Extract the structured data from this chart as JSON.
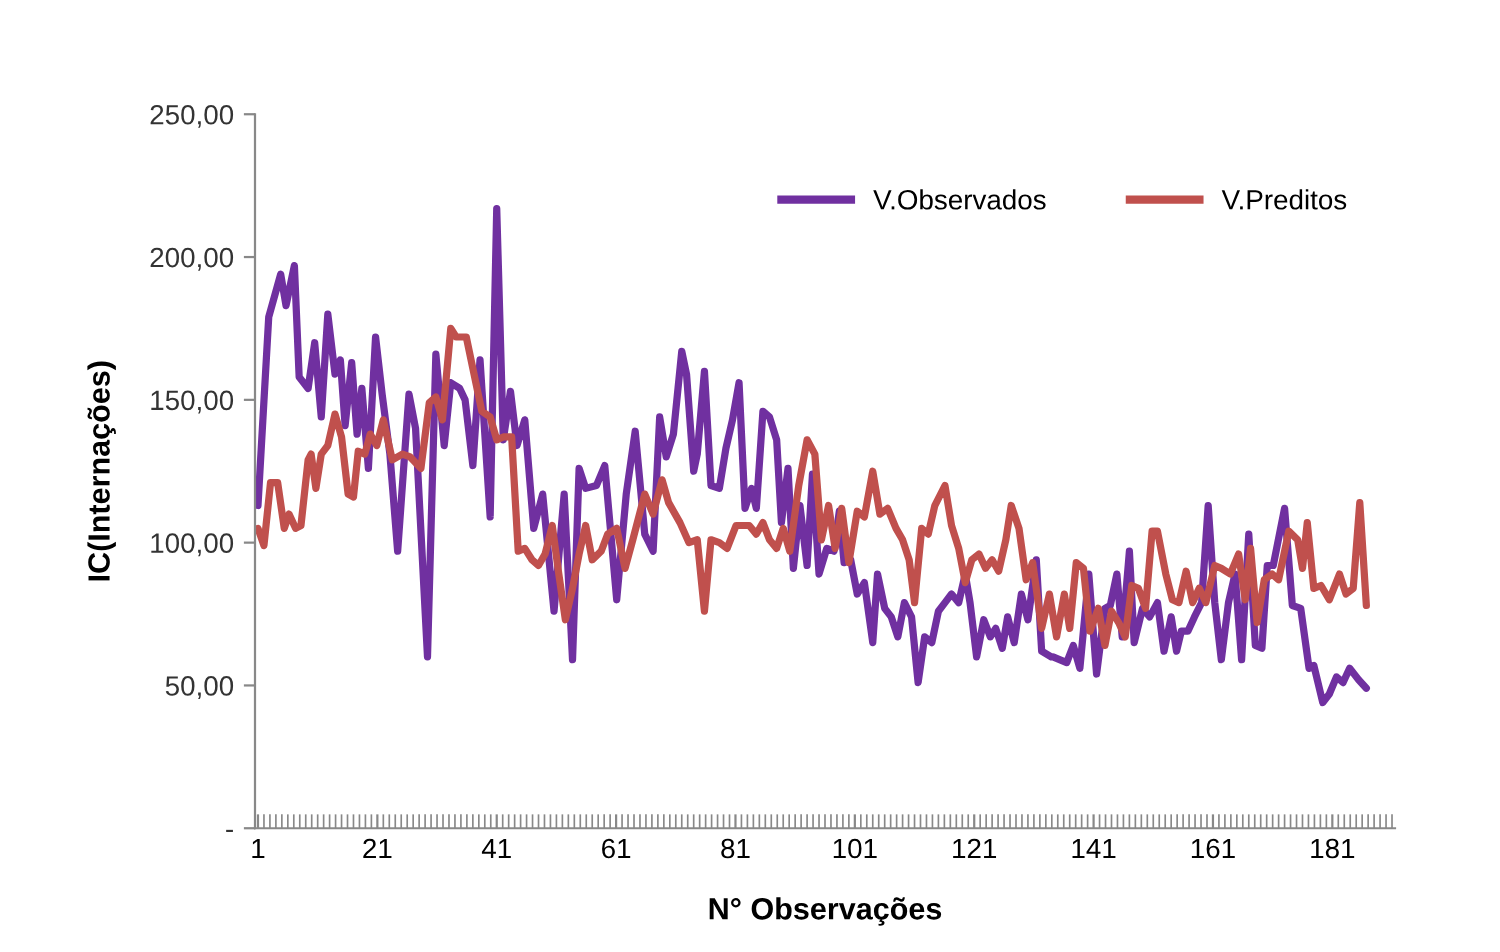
{
  "chart_data": {
    "type": "line",
    "xlabel": "N° Observações",
    "ylabel": "IC(Internações)",
    "xlim": [
      0.5,
      191.5
    ],
    "xticks": [
      1,
      21,
      41,
      61,
      81,
      101,
      121,
      141,
      161,
      181
    ],
    "ylim": [
      0,
      250
    ],
    "yticks": [
      {
        "value": 0,
        "label": "-"
      },
      {
        "value": 50,
        "label": "50,00"
      },
      {
        "value": 100,
        "label": "100,00"
      },
      {
        "value": 150,
        "label": "150,00"
      },
      {
        "value": 200,
        "label": "200,00"
      },
      {
        "value": 250,
        "label": "250,00"
      }
    ],
    "grid": false,
    "legend": "top right",
    "marker": "none",
    "line_style": "solid",
    "series": [
      {
        "name": "V.Observados",
        "color": "#7030a0",
        "x": [
          1,
          2.8,
          4.8,
          5.7,
          7.1,
          7.9,
          9.4,
          10.5,
          11.6,
          12.7,
          13.9,
          14.8,
          15.6,
          16.7,
          17.6,
          18.4,
          19.5,
          20.7,
          21.8,
          23.1,
          24.4,
          26.3,
          27.4,
          29.4,
          30.8,
          32.2,
          33.3,
          34.8,
          35.7,
          37.0,
          38.2,
          39.9,
          41,
          42.1,
          43.3,
          44.4,
          45.7,
          47.2,
          48.7,
          50.6,
          52.3,
          53.7,
          54.8,
          55.9,
          57.7,
          59.1,
          61.1,
          62.7,
          64.2,
          65.8,
          67.2,
          68.3,
          69.4,
          70.6,
          72,
          72.8,
          74,
          74.6,
          75.8,
          76.9,
          78.3,
          79.4,
          80.5,
          81.6,
          82.6,
          83.7,
          84.5,
          85.6,
          86.7,
          87.9,
          88.7,
          89.8,
          90.7,
          91.8,
          93,
          93.9,
          95,
          96.3,
          97.5,
          98.4,
          99.2,
          100.3,
          101.4,
          102.6,
          104,
          104.8,
          106,
          107.1,
          108.2,
          109.3,
          110.5,
          111.6,
          112.7,
          113.9,
          115,
          116.1,
          117.2,
          118.4,
          119.5,
          120.3,
          121.4,
          122.6,
          123.7,
          124.6,
          125.7,
          126.6,
          127.7,
          128.9,
          130,
          131.4,
          132.3,
          133.9,
          134.2,
          136.5,
          137.6,
          138.7,
          140.2,
          141.5,
          142.9,
          143.8,
          144.9,
          145.8,
          147,
          147.8,
          149.2,
          150.4,
          151.7,
          152.8,
          154,
          154.9,
          155.7,
          156.8,
          157.9,
          159.1,
          160.2,
          161.3,
          162.4,
          163.6,
          164.7,
          165.8,
          167,
          168.1,
          169.2,
          170.1,
          171.1,
          173,
          174.3,
          175.7,
          177.1,
          177.9,
          179.4,
          180.5,
          181.7,
          182.8,
          183.9,
          185.4,
          186.7
        ],
        "values": [
          113,
          179,
          194,
          183,
          197,
          158,
          154,
          170,
          144,
          180,
          159,
          164,
          141,
          163,
          138,
          154,
          126,
          172,
          152,
          131,
          97,
          152,
          140,
          60,
          166,
          134,
          156,
          154,
          150,
          127,
          164,
          109,
          217,
          136,
          153,
          134,
          143,
          105,
          117,
          76,
          117,
          59,
          126,
          119,
          120,
          127,
          80,
          117,
          139,
          103,
          97,
          144,
          130,
          138,
          167,
          159,
          125,
          131,
          160,
          120,
          119,
          133,
          143,
          156,
          112,
          119,
          112,
          146,
          144,
          136,
          107,
          126,
          91,
          113,
          92,
          124,
          89,
          98,
          97,
          111,
          93,
          94,
          82,
          86,
          65,
          89,
          77,
          74,
          67,
          79,
          74,
          51,
          67,
          65,
          76,
          79,
          82,
          79,
          89,
          79,
          60,
          73,
          67,
          70,
          63,
          74,
          65,
          82,
          73,
          94,
          62,
          60,
          60,
          58,
          64,
          56,
          89,
          54,
          77,
          78,
          89,
          67,
          97,
          65,
          77,
          74,
          79,
          62,
          74,
          62,
          69,
          69,
          74,
          79,
          113,
          79,
          59,
          79,
          89,
          59,
          103,
          64,
          63,
          92,
          92,
          112,
          78,
          77,
          56,
          57,
          44,
          47,
          53,
          51,
          56,
          52,
          49
        ]
      },
      {
        "name": "V.Preditos",
        "color": "#c0504d",
        "x": [
          1,
          2.0,
          3.1,
          4.3,
          5.4,
          6.2,
          7.3,
          8.2,
          9.4,
          9.9,
          10.7,
          11.6,
          12.7,
          13.9,
          15,
          16.1,
          17,
          17.8,
          18.9,
          19.8,
          20.9,
          22,
          23.5,
          25.2,
          26.5,
          28.3,
          29.7,
          30.8,
          31.9,
          33.3,
          34.2,
          35.9,
          37,
          38.5,
          39.9,
          41,
          42.1,
          43.5,
          44.6,
          45.7,
          46.9,
          48,
          49.1,
          50.3,
          51.4,
          52.5,
          53.7,
          54.8,
          55.9,
          57,
          58.5,
          59.6,
          61.1,
          62.5,
          63.8,
          65.8,
          67.2,
          68.7,
          69.8,
          71.7,
          73.2,
          74.6,
          75.8,
          76.9,
          78.3,
          79.6,
          81.1,
          83.3,
          84.5,
          85.6,
          86.7,
          87.9,
          89,
          90.1,
          91.6,
          93,
          94.3,
          95.4,
          96.6,
          97.7,
          98.8,
          100,
          101.4,
          102.6,
          104,
          105.2,
          106.5,
          107.9,
          109,
          110.1,
          111,
          112.2,
          113.3,
          114.4,
          116.1,
          117.2,
          118.4,
          119.5,
          120.6,
          121.8,
          122.9,
          124,
          125.1,
          126.3,
          127.2,
          128.5,
          129.7,
          130.8,
          132.3,
          133.6,
          134.8,
          136.1,
          137,
          138.1,
          139.3,
          140.4,
          141.8,
          142.9,
          144,
          145.2,
          146.3,
          147.4,
          148.5,
          149.7,
          150.8,
          151.7,
          153.1,
          154.2,
          155.3,
          156.5,
          157.6,
          158.7,
          159.8,
          161.3,
          162.4,
          163.9,
          165.3,
          166.4,
          167.3,
          168.4,
          169.6,
          170.9,
          172,
          173.7,
          175.2,
          176,
          176.8,
          177.9,
          179.1,
          180.5,
          182.2,
          183.3,
          184.5,
          185.6,
          186.7
        ],
        "values": [
          105,
          99,
          121,
          121,
          105,
          110,
          105,
          106,
          129,
          131,
          119,
          131,
          134,
          145,
          137,
          117,
          116,
          132,
          131,
          138,
          134,
          143,
          129,
          131,
          130,
          126,
          149,
          151,
          143,
          175,
          172,
          172,
          161,
          146,
          144,
          136,
          137,
          137,
          97,
          98,
          94,
          92,
          96,
          106,
          89,
          73,
          84,
          96,
          106,
          94,
          97,
          103,
          105,
          91,
          101,
          117,
          110,
          122,
          114,
          107,
          100,
          101,
          76,
          101,
          100,
          98,
          106,
          106,
          103,
          107,
          101,
          98,
          105,
          97,
          120,
          136,
          131,
          101,
          113,
          98,
          112,
          93,
          111,
          109,
          125,
          110,
          112,
          105,
          101,
          94,
          79,
          105,
          103,
          113,
          120,
          106,
          98,
          86,
          94,
          96,
          91,
          94,
          90,
          101,
          113,
          105,
          87,
          93,
          70,
          82,
          67,
          82,
          70,
          93,
          91,
          69,
          77,
          64,
          76,
          72,
          67,
          85,
          84,
          77,
          104,
          104,
          89,
          80,
          79,
          90,
          79,
          84,
          79,
          92,
          91,
          89,
          96,
          80,
          98,
          72,
          87,
          89,
          87,
          104,
          101,
          91,
          107,
          84,
          85,
          80,
          89,
          82,
          84,
          114,
          78
        ]
      }
    ]
  }
}
